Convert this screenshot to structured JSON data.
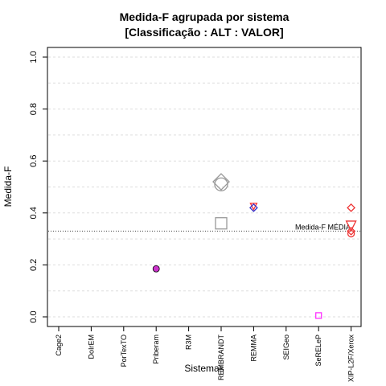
{
  "chart_data": {
    "type": "scatter",
    "title": "Medida-F agrupada por sistema",
    "subtitle": "[Classificação : ALT : VALOR]",
    "xlabel": "Sistemas",
    "ylabel": "Medida-F",
    "ylim": [
      0.0,
      1.0
    ],
    "yticks": [
      0.0,
      0.2,
      0.4,
      0.6,
      0.8,
      1.0
    ],
    "yticks_text": [
      "0.0",
      "0.2",
      "0.4",
      "0.6",
      "0.8",
      "1.0"
    ],
    "grid": "horizontal-dashed",
    "categories": [
      "Cage2",
      "DoIrEM",
      "PorTexTO",
      "Priberam",
      "R3M",
      "REMBRANDT",
      "REMMA",
      "SEIGeo",
      "SeRELeP",
      "XIP-L2F/Xerox"
    ],
    "reference_line": {
      "label": "Medida-F MÉDIA",
      "value": 0.33,
      "style": "dotted"
    },
    "points": [
      {
        "category": "Priberam",
        "y": 0.185,
        "shape": "circle-filled",
        "color": "#cc33cc"
      },
      {
        "category": "REMBRANDT",
        "y": 0.52,
        "shape": "diamond",
        "color": "#999999"
      },
      {
        "category": "REMBRANDT",
        "y": 0.51,
        "shape": "circle",
        "color": "#999999"
      },
      {
        "category": "REMBRANDT",
        "y": 0.36,
        "shape": "square",
        "color": "#999999"
      },
      {
        "category": "REMMA",
        "y": 0.425,
        "shape": "triangle-down",
        "color": "#ff3333"
      },
      {
        "category": "REMMA",
        "y": 0.42,
        "shape": "diamond",
        "color": "#3333cc"
      },
      {
        "category": "SeRELeP",
        "y": 0.005,
        "shape": "square-small",
        "color": "#ff33ff"
      },
      {
        "category": "XIP-L2F/Xerox",
        "y": 0.42,
        "shape": "diamond",
        "color": "#ee3333"
      },
      {
        "category": "XIP-L2F/Xerox",
        "y": 0.35,
        "shape": "triangle-down",
        "color": "#ee3333"
      },
      {
        "category": "XIP-L2F/Xerox",
        "y": 0.33,
        "shape": "diamond",
        "color": "#ee3333"
      },
      {
        "category": "XIP-L2F/Xerox",
        "y": 0.32,
        "shape": "circle",
        "color": "#ee3333"
      }
    ]
  }
}
